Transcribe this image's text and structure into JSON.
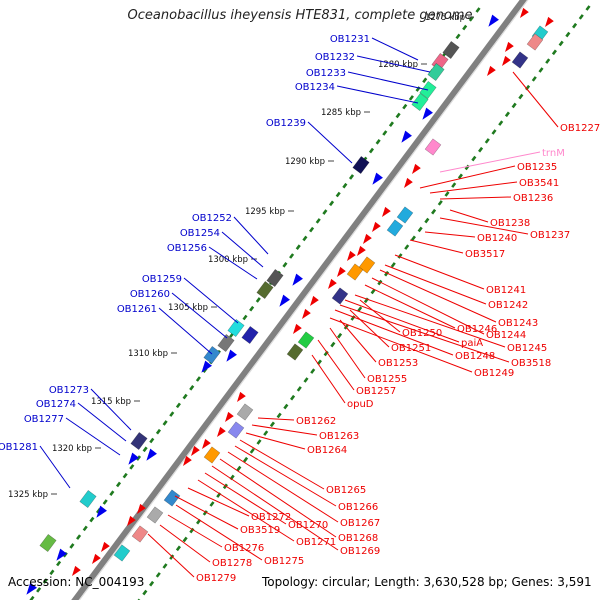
{
  "title": "Oceanobacillus iheyensis HTE831, complete genome",
  "footer": {
    "accession": "Accession: NC_004193",
    "summary": "Topology: circular; Length: 3,630,528 bp; Genes: 3,591"
  },
  "colors": {
    "backbone": "#808080",
    "forward_label": "#0000cc",
    "reverse_label": "#ee0000",
    "rna_label": "#ff88cc",
    "tick": "#1f7a1f"
  },
  "kbp_ticks": [
    "1275 kbp",
    "1280 kbp",
    "1285 kbp",
    "1290 kbp",
    "1295 kbp",
    "1300 kbp",
    "1305 kbp",
    "1310 kbp",
    "1315 kbp",
    "1320 kbp",
    "1325 kbp"
  ],
  "forward_genes": [
    "OB1231",
    "OB1232",
    "OB1233",
    "OB1234",
    "OB1239",
    "OB1252",
    "OB1254",
    "OB1256",
    "OB1259",
    "OB1260",
    "OB1261",
    "OB1273",
    "OB1274",
    "OB1277",
    "OB1281"
  ],
  "reverse_genes": [
    "OB1227",
    "trnM",
    "OB1235",
    "OB3541",
    "OB1236",
    "OB1238",
    "OB1237",
    "OB1240",
    "OB3517",
    "OB1241",
    "OB1242",
    "OB1243",
    "OB1244",
    "OB1246",
    "OB1245",
    "paiA",
    "OB3518",
    "OB1248",
    "OB1249",
    "OB1250",
    "OB1251",
    "OB1253",
    "OB1255",
    "OB1257",
    "opuD",
    "OB1262",
    "OB1263",
    "OB1264",
    "OB1265",
    "OB1266",
    "OB1267",
    "OB1268",
    "OB1269",
    "OB1270",
    "OB1271",
    "OB1272",
    "OB3519",
    "OB1275",
    "OB1276",
    "OB1278",
    "OB1279"
  ]
}
